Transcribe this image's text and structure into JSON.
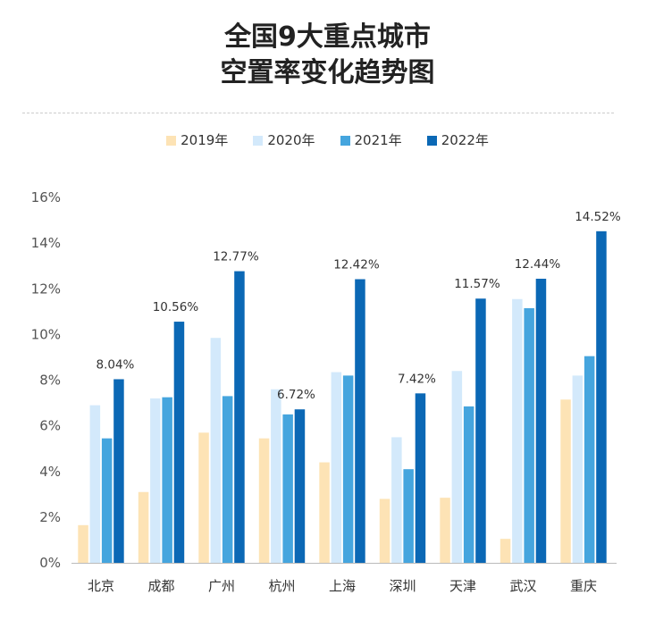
{
  "title_line1": "全国9大重点城市",
  "title_line2": "空置率变化趋势图",
  "chart_data": {
    "type": "bar",
    "categories": [
      "北京",
      "成都",
      "广州",
      "杭州",
      "上海",
      "深圳",
      "天津",
      "武汉",
      "重庆"
    ],
    "series": [
      {
        "name": "2019年",
        "color": "#fde3b5",
        "values": [
          1.65,
          3.1,
          5.7,
          5.45,
          4.4,
          2.8,
          2.85,
          1.05,
          7.15
        ]
      },
      {
        "name": "2020年",
        "color": "#d3e9fb",
        "values": [
          6.9,
          7.2,
          9.85,
          7.6,
          8.35,
          5.5,
          8.4,
          11.55,
          8.2
        ]
      },
      {
        "name": "2021年",
        "color": "#45a5de",
        "values": [
          5.45,
          7.25,
          7.3,
          6.5,
          8.2,
          4.1,
          6.85,
          11.15,
          9.05
        ]
      },
      {
        "name": "2022年",
        "color": "#0b68b5",
        "values": [
          8.04,
          10.56,
          12.77,
          6.72,
          12.42,
          7.42,
          11.57,
          12.44,
          14.52
        ],
        "labels": [
          "8.04%",
          "10.56%",
          "12.77%",
          "6.72%",
          "12.42%",
          "7.42%",
          "11.57%",
          "12.44%",
          "14.52%"
        ]
      }
    ],
    "ylim": [
      0,
      16
    ],
    "yticks": [
      "0%",
      "2%",
      "4%",
      "6%",
      "8%",
      "10%",
      "12%",
      "14%",
      "16%"
    ],
    "grid": false,
    "legend": "top"
  }
}
